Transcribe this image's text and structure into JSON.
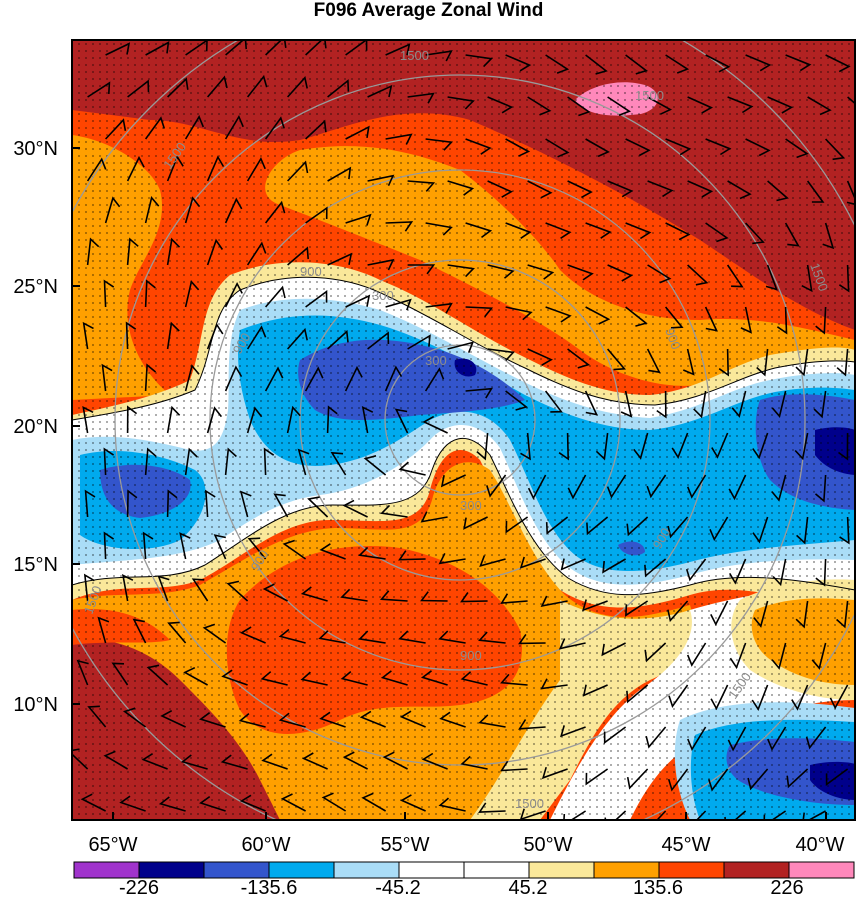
{
  "title": "F096 Average Zonal Wind",
  "lat_labels": [
    "30°N",
    "25°N",
    "20°N",
    "15°N",
    "10°N"
  ],
  "lon_labels": [
    "65°W",
    "60°W",
    "55°W",
    "50°W",
    "45°W",
    "40°W"
  ],
  "colorbar": {
    "colors": [
      "#a033cc",
      "#00008b",
      "#3355cc",
      "#00aaee",
      "#aaddf7",
      "#ffffff",
      "#ffffff",
      "#fae89a",
      "#ffa000",
      "#ff4500",
      "#b22222",
      "#ff88bb"
    ],
    "labels": [
      "-226",
      "-135.6",
      "-45.2",
      "45.2",
      "135.6",
      "226"
    ]
  },
  "contour_labels": [
    "1500",
    "1500",
    "1500",
    "1500",
    "1500",
    "900",
    "900",
    "900",
    "900",
    "900",
    "900",
    "300",
    "300",
    "300",
    "1500",
    "1500"
  ]
}
